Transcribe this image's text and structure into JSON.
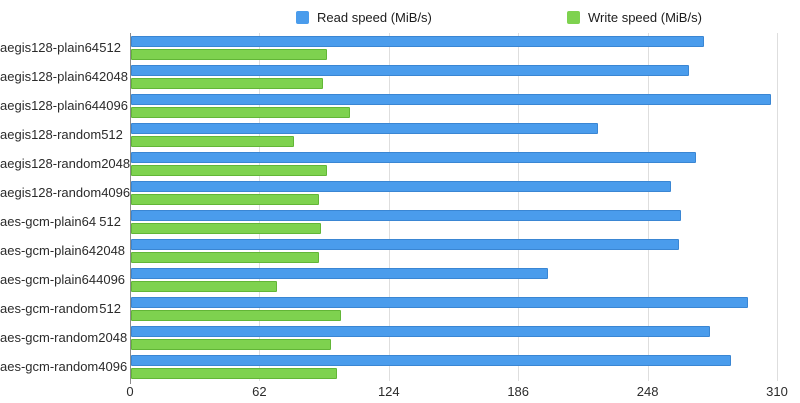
{
  "chart_data": {
    "type": "bar",
    "orientation": "horizontal",
    "title": "",
    "categories": [
      "aegis128-plain64 512",
      "aegis128-plain64 2048",
      "aegis128-plain64 4096",
      "aegis128-random 512",
      "aegis128-random 2048",
      "aegis128-random 4096",
      "aes-gcm-plain64 512",
      "aes-gcm-plain64 2048",
      "aes-gcm-plain64 4096",
      "aes-gcm-random 512",
      "aes-gcm-random 2048",
      "aes-gcm-random 4096"
    ],
    "series": [
      {
        "name": "Read speed (MiB/s)",
        "color": "#4a9cec",
        "border_color": "#3a86d3",
        "values": [
          275,
          268,
          307,
          224,
          271,
          259,
          264,
          263,
          200,
          296,
          278,
          288
        ]
      },
      {
        "name": "Write speed (MiB/s)",
        "color": "#7ed24f",
        "border_color": "#62b637",
        "values": [
          94,
          92,
          105,
          78,
          94,
          90,
          91,
          90,
          70,
          101,
          96,
          99
        ]
      }
    ],
    "x_ticks": [
      0,
      62,
      124,
      186,
      248,
      310
    ],
    "xlim": [
      0,
      310
    ],
    "xlabel": "",
    "ylabel": "",
    "grid": true,
    "legend_position": "top"
  },
  "colors": {
    "grid_line": "#dedede",
    "axis_line": "#8c8c8c",
    "label_text": "#2b2b2b",
    "background": "#ffffff"
  }
}
